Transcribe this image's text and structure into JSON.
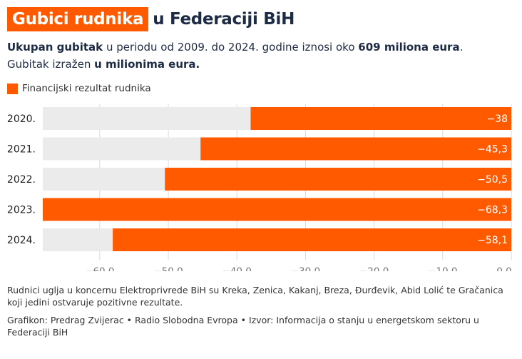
{
  "header": {
    "title_highlight": "Gubici rudnika",
    "title_rest": "u Federaciji BiH"
  },
  "subtitle": {
    "line1_bold1": "Ukupan gubitak",
    "line1_text": " u periodu od 2009. do 2024. godine iznosi oko ",
    "line1_bold2": "609 miliona eura",
    "line1_end": ".",
    "line2_text": "Gubitak izražen ",
    "line2_bold": "u milionima eura."
  },
  "colors": {
    "accent": "#ff5a00",
    "track": "#ebebeb",
    "title_dark": "#1d2b44"
  },
  "chart_data": {
    "type": "bar",
    "orientation": "horizontal",
    "categories": [
      "2020.",
      "2021.",
      "2022.",
      "2023.",
      "2024."
    ],
    "series": [
      {
        "name": "Financijski rezultat rudnika",
        "values": [
          -38,
          -45.3,
          -50.5,
          -68.3,
          -58.1
        ],
        "labels": [
          "−38",
          "−45,3",
          "−50,5",
          "−68,3",
          "−58,1"
        ]
      }
    ],
    "xlim": [
      -68.3,
      0
    ],
    "x_ticks": [
      -60,
      -50,
      -40,
      -30,
      -20,
      -10,
      0
    ],
    "x_tick_labels": [
      "−60,0",
      "−50,0",
      "−40,0",
      "−30,0",
      "−20,0",
      "−10,0",
      "0,0"
    ],
    "grid": true,
    "legend_position": "top-left"
  },
  "footnote": "Rudnici uglja u koncernu Elektroprivrede BiH su Kreka, Zenica, Kakanj, Breza, Đurđevik, Abid Lolić te Gračanica koji jedini ostvaruje pozitivne rezultate.",
  "credit": "Grafikon: Predrag Zvijerac • Radio Slobodna Evropa • Izvor: Informacija o stanju u energetskom sektoru u Federaciji BiH"
}
